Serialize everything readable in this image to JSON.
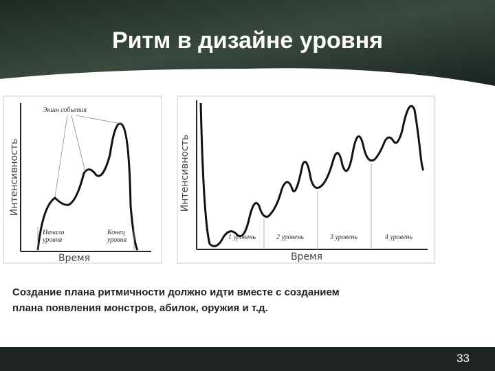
{
  "header": {
    "title": "Ритм в дизайне уровня"
  },
  "left_diagram": {
    "annotation": "Экшн события",
    "y_label": "Интенсивность",
    "x_label": "Время",
    "start_label": [
      "Начало",
      "уровня"
    ],
    "end_label": [
      "Конец",
      "уровня"
    ]
  },
  "right_diagram": {
    "y_label": "Интенсивность",
    "x_label": "Время",
    "levels": [
      "1 уровень",
      "2 уровень",
      "3 уровень",
      "4 уровень"
    ]
  },
  "body": {
    "lines": [
      "Создание плана ритмичности должно идти вместе с созданием",
      "плана появления монстров, абилок, оружия и т.д."
    ]
  },
  "footer": {
    "page_number": "33"
  }
}
